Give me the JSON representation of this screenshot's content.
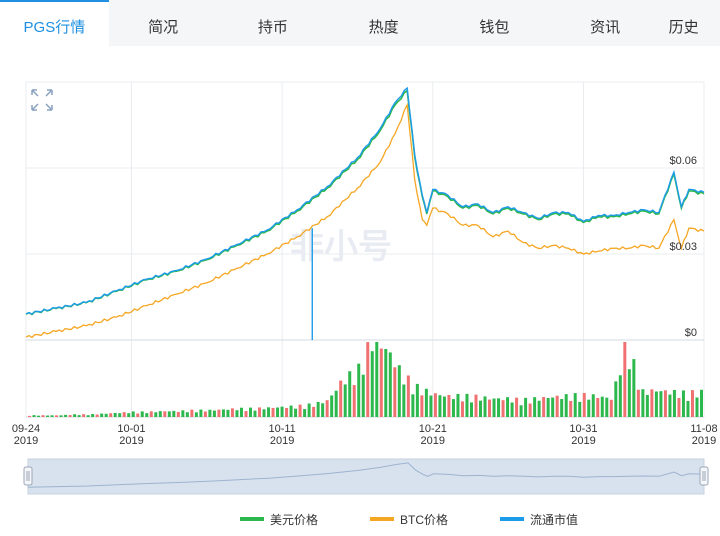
{
  "tabs": [
    {
      "label": "PGS行情",
      "active": true
    },
    {
      "label": "简况"
    },
    {
      "label": "持币"
    },
    {
      "label": "热度"
    },
    {
      "label": "钱包"
    },
    {
      "label": "资讯"
    },
    {
      "label": "历史"
    }
  ],
  "watermark": "非小号",
  "colors": {
    "usd": "#2db84d",
    "btc": "#f5a623",
    "cap": "#1e9be8",
    "up": "#2db84d",
    "down": "#f07171",
    "grid": "#e9ecf0"
  },
  "chart_data": {
    "type": "line",
    "x_ticks": [
      {
        "day": "09-24",
        "year": "2019"
      },
      {
        "day": "10-01",
        "year": "2019"
      },
      {
        "day": "10-11",
        "year": "2019"
      },
      {
        "day": "10-21",
        "year": "2019"
      },
      {
        "day": "10-31",
        "year": "2019"
      },
      {
        "day": "11-08",
        "year": "2019"
      }
    ],
    "y_right_ticks": [
      "$0.06",
      "$0.03",
      "$0"
    ],
    "y_range": [
      0,
      0.09
    ],
    "x_range": [
      "2019-09-24",
      "2019-11-08"
    ],
    "usd_price": [
      [
        "09-24",
        0.009
      ],
      [
        "09-26",
        0.011
      ],
      [
        "09-28",
        0.013
      ],
      [
        "09-30",
        0.017
      ],
      [
        "10-02",
        0.021
      ],
      [
        "10-04",
        0.024
      ],
      [
        "10-06",
        0.028
      ],
      [
        "10-08",
        0.033
      ],
      [
        "10-10",
        0.038
      ],
      [
        "10-12",
        0.045
      ],
      [
        "10-14",
        0.053
      ],
      [
        "10-16",
        0.063
      ],
      [
        "10-17.5",
        0.073
      ],
      [
        "10-18.5",
        0.082
      ],
      [
        "10-19.3",
        0.087
      ],
      [
        "10-19.8",
        0.064
      ],
      [
        "10-20.3",
        0.05
      ],
      [
        "10-20.6",
        0.044
      ],
      [
        "10-21",
        0.052
      ],
      [
        "10-22",
        0.05
      ],
      [
        "10-23",
        0.046
      ],
      [
        "10-24",
        0.047
      ],
      [
        "10-25",
        0.044
      ],
      [
        "10-26",
        0.046
      ],
      [
        "10-27",
        0.044
      ],
      [
        "10-28",
        0.042
      ],
      [
        "10-29",
        0.044
      ],
      [
        "10-30",
        0.044
      ],
      [
        "10-31",
        0.041
      ],
      [
        "11-01",
        0.043
      ],
      [
        "11-02",
        0.043
      ],
      [
        "11-03",
        0.044
      ],
      [
        "11-04",
        0.045
      ],
      [
        "11-05",
        0.044
      ],
      [
        "11-06",
        0.058
      ],
      [
        "11-06.5",
        0.046
      ],
      [
        "11-07",
        0.052
      ],
      [
        "11-08",
        0.051
      ]
    ],
    "btc_price": [
      [
        "09-24",
        0.001
      ],
      [
        "09-26",
        0.003
      ],
      [
        "09-28",
        0.005
      ],
      [
        "09-30",
        0.008
      ],
      [
        "10-02",
        0.012
      ],
      [
        "10-04",
        0.016
      ],
      [
        "10-06",
        0.02
      ],
      [
        "10-08",
        0.025
      ],
      [
        "10-10",
        0.03
      ],
      [
        "10-12",
        0.036
      ],
      [
        "10-14",
        0.043
      ],
      [
        "10-16",
        0.053
      ],
      [
        "10-17.5",
        0.062
      ],
      [
        "10-18.5",
        0.072
      ],
      [
        "10-19.3",
        0.082
      ],
      [
        "10-19.8",
        0.056
      ],
      [
        "10-20.3",
        0.042
      ],
      [
        "10-20.6",
        0.04
      ],
      [
        "10-21",
        0.046
      ],
      [
        "10-22",
        0.044
      ],
      [
        "10-23",
        0.04
      ],
      [
        "10-24",
        0.04
      ],
      [
        "10-25",
        0.036
      ],
      [
        "10-26",
        0.038
      ],
      [
        "10-27",
        0.034
      ],
      [
        "10-28",
        0.032
      ],
      [
        "10-29",
        0.033
      ],
      [
        "10-30",
        0.032
      ],
      [
        "10-31",
        0.03
      ],
      [
        "11-01",
        0.031
      ],
      [
        "11-02",
        0.032
      ],
      [
        "11-03",
        0.032
      ],
      [
        "11-04",
        0.033
      ],
      [
        "11-05",
        0.032
      ],
      [
        "11-06",
        0.042
      ],
      [
        "11-06.5",
        0.032
      ],
      [
        "11-07",
        0.039
      ],
      [
        "11-08",
        0.038
      ]
    ],
    "market_cap_spike_date": "10-13",
    "volume_relative": [
      0.02,
      0.02,
      0.02,
      0.03,
      0.03,
      0.04,
      0.05,
      0.06,
      0.06,
      0.07,
      0.07,
      0.08,
      0.08,
      0.09,
      0.1,
      0.1,
      0.11,
      0.12,
      0.13,
      0.15,
      0.2,
      0.45,
      0.55,
      0.95,
      0.8,
      0.5,
      0.35,
      0.28,
      0.25,
      0.25,
      0.24,
      0.22,
      0.22,
      0.2,
      0.22,
      0.24,
      0.25,
      0.26,
      0.25,
      0.22,
      0.9,
      0.3,
      0.32,
      0.3,
      0.28,
      0.3
    ]
  },
  "legend": [
    {
      "label": "美元价格",
      "color": "#2db84d"
    },
    {
      "label": "BTC价格",
      "color": "#f5a623"
    },
    {
      "label": "流通市值",
      "color": "#1e9be8"
    }
  ]
}
